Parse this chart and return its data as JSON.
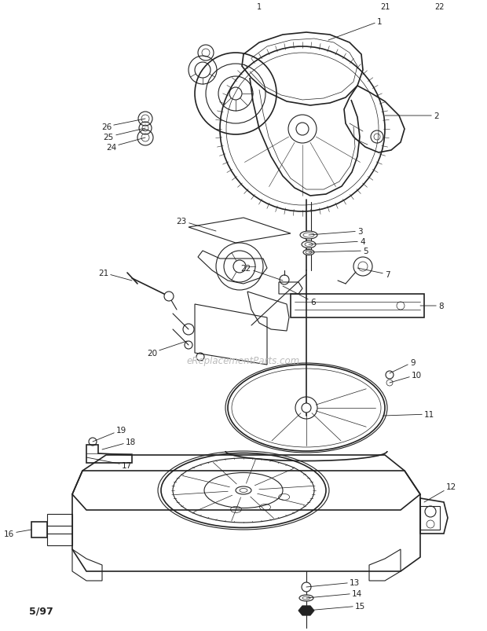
{
  "bg_color": "#ffffff",
  "line_color": "#222222",
  "text_color": "#222222",
  "watermark": "eReplacementParts.com",
  "watermark_color": "#bbbbbb",
  "footer_text": "5/97",
  "figsize": [
    6.2,
    8.04
  ],
  "dpi": 100
}
